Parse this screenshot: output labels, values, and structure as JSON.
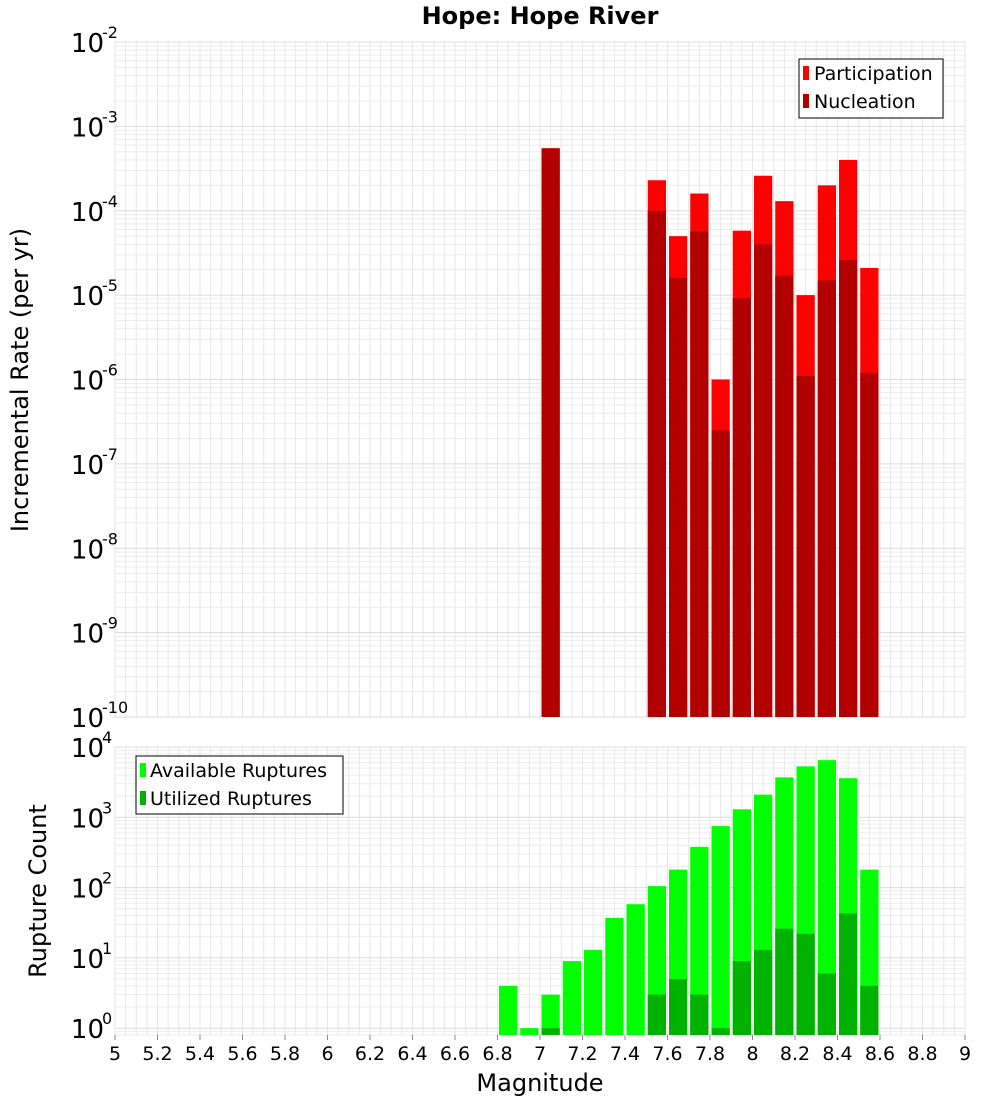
{
  "colors": {
    "participation": "#ff0000",
    "nucleation": "#b20000",
    "available": "#00ff00",
    "utilized": "#00b200"
  },
  "chart_data": [
    {
      "type": "bar",
      "title": "Hope: Hope River",
      "xlabel": "Magnitude",
      "ylabel": "Incremental Rate (per yr)",
      "xlim": [
        5,
        9
      ],
      "ylim": [
        1e-10,
        0.01
      ],
      "yscale": "log",
      "grid": true,
      "legend_position": "top-right",
      "x_ticks": [
        "5",
        "5.2",
        "5.4",
        "5.6",
        "5.8",
        "6",
        "6.2",
        "6.4",
        "6.6",
        "6.8",
        "7",
        "7.2",
        "7.4",
        "7.6",
        "7.8",
        "8",
        "8.2",
        "8.4",
        "8.6",
        "8.8",
        "9"
      ],
      "y_ticks": [
        {
          "base": "10",
          "exp": "-10"
        },
        {
          "base": "10",
          "exp": "-9"
        },
        {
          "base": "10",
          "exp": "-8"
        },
        {
          "base": "10",
          "exp": "-7"
        },
        {
          "base": "10",
          "exp": "-6"
        },
        {
          "base": "10",
          "exp": "-5"
        },
        {
          "base": "10",
          "exp": "-4"
        },
        {
          "base": "10",
          "exp": "-3"
        },
        {
          "base": "10",
          "exp": "-2"
        }
      ],
      "x": [
        7.0,
        7.5,
        7.6,
        7.7,
        7.8,
        7.9,
        8.0,
        8.1,
        8.2,
        8.3,
        8.4,
        8.5
      ],
      "series": [
        {
          "name": "Participation",
          "values": [
            0.00055,
            0.00023,
            5e-05,
            0.00016,
            1e-06,
            5.8e-05,
            0.00026,
            0.00013,
            1e-05,
            0.0002,
            0.0004,
            2.1e-05
          ]
        },
        {
          "name": "Nucleation",
          "values": [
            0.00055,
            0.0001,
            1.6e-05,
            5.7e-05,
            2.5e-07,
            9.2e-06,
            4e-05,
            1.7e-05,
            1.1e-06,
            1.5e-05,
            2.6e-05,
            1.2e-06
          ]
        }
      ]
    },
    {
      "type": "bar",
      "xlabel": "Magnitude",
      "ylabel": "Rupture Count",
      "xlim": [
        5,
        9
      ],
      "ylim": [
        0.8,
        10000
      ],
      "yscale": "log",
      "grid": true,
      "legend_position": "top-left",
      "y_ticks": [
        {
          "base": "10",
          "exp": "0"
        },
        {
          "base": "10",
          "exp": "1"
        },
        {
          "base": "10",
          "exp": "2"
        },
        {
          "base": "10",
          "exp": "3"
        },
        {
          "base": "10",
          "exp": "4"
        }
      ],
      "x": [
        6.8,
        6.9,
        7.0,
        7.1,
        7.2,
        7.3,
        7.4,
        7.5,
        7.6,
        7.7,
        7.8,
        7.9,
        8.0,
        8.1,
        8.2,
        8.3,
        8.4,
        8.5
      ],
      "series": [
        {
          "name": "Available Ruptures",
          "values": [
            4,
            1,
            3,
            9,
            13,
            37,
            58,
            105,
            180,
            380,
            750,
            1300,
            2100,
            3700,
            5300,
            6500,
            3600,
            180
          ]
        },
        {
          "name": "Utilized Ruptures",
          "values": [
            0,
            0,
            1,
            0,
            0,
            0,
            0,
            3,
            5,
            3,
            1,
            9,
            13,
            26,
            22,
            6,
            43,
            4
          ]
        }
      ]
    }
  ]
}
